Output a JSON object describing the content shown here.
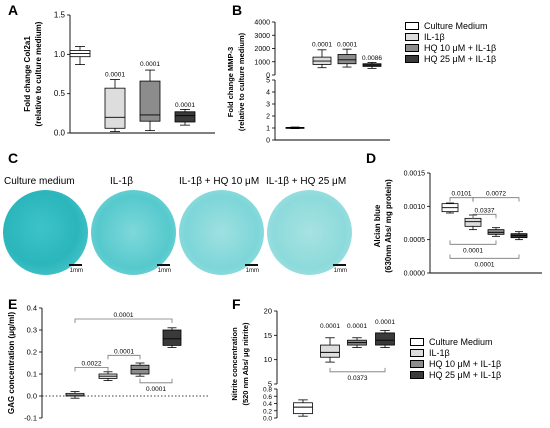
{
  "panels": {
    "A": "A",
    "B": "B",
    "C": "C",
    "D": "D",
    "E": "E",
    "F": "F"
  },
  "colors": {
    "cm": "#ffffff",
    "il": "#dddddd",
    "hq10": "#8c8c8c",
    "hq25": "#3a3a3a"
  },
  "legend": [
    "Culture Medium",
    "IL-1β",
    "HQ 10 μM + IL-1β",
    "HQ 25 μM + IL-1β"
  ],
  "photos": {
    "titles": [
      "Culture medium",
      "IL-1β",
      "IL-1β + HQ 10 μM",
      "IL-1β + HQ 25 μM"
    ],
    "scale_label": "1mm"
  },
  "chart_data": [
    {
      "id": "A",
      "type": "box",
      "ylabel": "Fold change Col2a1",
      "ylabel2": "(relative to culture medium)",
      "ylim": [
        0,
        1.5
      ],
      "yticks": [
        "0.0",
        "0.5",
        "1.0",
        "1.5"
      ],
      "series": [
        {
          "name": "Culture Medium",
          "min": 0.87,
          "q1": 0.97,
          "median": 1.01,
          "q3": 1.05,
          "max": 1.1
        },
        {
          "name": "IL-1β",
          "min": 0.02,
          "q1": 0.06,
          "median": 0.2,
          "q3": 0.57,
          "max": 0.68
        },
        {
          "name": "HQ 10 μM + IL-1β",
          "min": 0.03,
          "q1": 0.15,
          "median": 0.23,
          "q3": 0.66,
          "max": 0.8
        },
        {
          "name": "HQ 25 μM + IL-1β",
          "min": 0.1,
          "q1": 0.14,
          "median": 0.22,
          "q3": 0.27,
          "max": 0.3
        }
      ],
      "annotations": [
        {
          "group": 1,
          "y": 0.72,
          "text": "0.0001"
        },
        {
          "group": 2,
          "y": 0.85,
          "text": "0.0001"
        },
        {
          "group": 3,
          "y": 0.33,
          "text": "0.0001"
        }
      ]
    },
    {
      "id": "B",
      "type": "box",
      "axis_break": true,
      "ylabel": "Fold change MMP-3",
      "ylabel2": "(relative to culture medium)",
      "upper": {
        "ylim": [
          0,
          4000
        ],
        "yticks": [
          "0",
          "1000",
          "2000",
          "3000",
          "4000"
        ]
      },
      "lower": {
        "ylim": [
          0,
          5
        ],
        "yticks": [
          "0",
          "1",
          "2",
          "3",
          "4",
          "5"
        ]
      },
      "series": [
        {
          "name": "Culture Medium",
          "min": 0.95,
          "q1": 1.0,
          "median": 1.0,
          "q3": 1.05,
          "max": 1.08
        },
        {
          "name": "IL-1β",
          "min": 550,
          "q1": 800,
          "median": 1050,
          "q3": 1350,
          "max": 1900
        },
        {
          "name": "HQ 10 μM + IL-1β",
          "min": 600,
          "q1": 850,
          "median": 1150,
          "q3": 1550,
          "max": 1950
        },
        {
          "name": "HQ 25 μM + IL-1β",
          "min": 500,
          "q1": 650,
          "median": 750,
          "q3": 850,
          "max": 950
        }
      ],
      "annotations": [
        {
          "group": 1,
          "y": 2150,
          "text": "0.0001"
        },
        {
          "group": 2,
          "y": 2150,
          "text": "0.0001"
        },
        {
          "group": 3,
          "y": 1150,
          "text": "0.0086"
        }
      ]
    },
    {
      "id": "D",
      "type": "box",
      "ylabel": "Alcian blue",
      "ylabel2": "(630nm Abs/ mg protein)",
      "ylim": [
        0,
        0.0015
      ],
      "yticks": [
        "0.0000",
        "0.0005",
        "0.0010",
        "0.0015"
      ],
      "series": [
        {
          "name": "Culture Medium",
          "min": 0.0009,
          "q1": 0.00092,
          "median": 0.00098,
          "q3": 0.00104,
          "max": 0.00105
        },
        {
          "name": "IL-1β",
          "min": 0.00065,
          "q1": 0.0007,
          "median": 0.00077,
          "q3": 0.00082,
          "max": 0.00087
        },
        {
          "name": "HQ 10 μM + IL-1β",
          "min": 0.00055,
          "q1": 0.00058,
          "median": 0.00061,
          "q3": 0.00065,
          "max": 0.00068
        },
        {
          "name": "HQ 25 μM + IL-1β",
          "min": 0.0005,
          "q1": 0.00053,
          "median": 0.00056,
          "q3": 0.00059,
          "max": 0.00062
        }
      ],
      "brackets": [
        {
          "from": 0,
          "to": 1,
          "y": 0.00113,
          "text": "0.0101"
        },
        {
          "from": 1,
          "to": 2,
          "y": 0.00088,
          "text": "0.0337"
        },
        {
          "from": 1,
          "to": 3,
          "y": 0.00113,
          "text": "0.0072"
        },
        {
          "from": 0,
          "to": 2,
          "y": 0.00043,
          "text": "0.0001",
          "below": true
        },
        {
          "from": 0,
          "to": 3,
          "y": 0.00022,
          "text": "0.0001",
          "below": true
        }
      ]
    },
    {
      "id": "E",
      "type": "box",
      "ylabel": "GAG concentration (μg/ml)",
      "ylim": [
        -0.1,
        0.4
      ],
      "yticks": [
        "-0.1",
        "0.0",
        "0.1",
        "0.2",
        "0.3",
        "0.4"
      ],
      "zero_line": "dotted",
      "series": [
        {
          "name": "Culture Medium",
          "min": -0.01,
          "q1": 0.0,
          "median": 0.005,
          "q3": 0.012,
          "max": 0.02
        },
        {
          "name": "IL-1β",
          "min": 0.07,
          "q1": 0.08,
          "median": 0.09,
          "q3": 0.1,
          "max": 0.11
        },
        {
          "name": "HQ 10 μM + IL-1β",
          "min": 0.09,
          "q1": 0.1,
          "median": 0.12,
          "q3": 0.14,
          "max": 0.15
        },
        {
          "name": "HQ 25 μM + IL-1β",
          "min": 0.22,
          "q1": 0.23,
          "median": 0.26,
          "q3": 0.3,
          "max": 0.31
        }
      ],
      "brackets": [
        {
          "from": 0,
          "to": 1,
          "y": 0.13,
          "text": "0.0022"
        },
        {
          "from": 1,
          "to": 2,
          "y": 0.185,
          "text": "0.0001"
        },
        {
          "from": 0,
          "to": 3,
          "y": 0.35,
          "text": "0.0001"
        },
        {
          "from": 2,
          "to": 3,
          "y": 0.06,
          "text": "0.0001",
          "below": true
        }
      ]
    },
    {
      "id": "F",
      "type": "box",
      "axis_break": true,
      "ylabel": "Nitrite concentration",
      "ylabel2": "(520 nm Abs/ μg nitrite)",
      "upper": {
        "ylim": [
          5,
          20
        ],
        "yticks": [
          "5",
          "10",
          "15",
          "20"
        ]
      },
      "lower": {
        "ylim": [
          0,
          0.8
        ],
        "yticks": [
          "0.0",
          "0.2",
          "0.4",
          "0.6",
          "0.8"
        ]
      },
      "series": [
        {
          "name": "Culture Medium",
          "min": 0.05,
          "q1": 0.12,
          "median": 0.3,
          "q3": 0.42,
          "max": 0.5
        },
        {
          "name": "IL-1β",
          "min": 9.5,
          "q1": 10.5,
          "median": 11.5,
          "q3": 13,
          "max": 14.5
        },
        {
          "name": "HQ 10 μM + IL-1β",
          "min": 12.5,
          "q1": 13,
          "median": 13.5,
          "q3": 14,
          "max": 14.5
        },
        {
          "name": "HQ 25 μM + IL-1β",
          "min": 12.5,
          "q1": 13,
          "median": 14,
          "q3": 15.5,
          "max": 16
        }
      ],
      "annotations": [
        {
          "group": 1,
          "y": 16.5,
          "text": "0.0001"
        },
        {
          "group": 2,
          "y": 16.5,
          "text": "0.0001"
        },
        {
          "group": 3,
          "y": 17.3,
          "text": "0.0001"
        }
      ],
      "brackets": [
        {
          "from": 1,
          "to": 3,
          "y": 7.5,
          "text": "0.0373",
          "below": true
        }
      ]
    }
  ]
}
